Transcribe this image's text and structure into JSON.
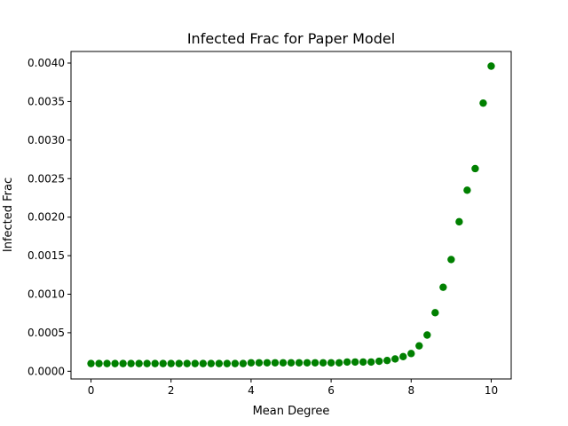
{
  "chart_data": {
    "type": "scatter",
    "title": "Infected Frac for Paper Model",
    "xlabel": "Mean Degree",
    "ylabel": "Infected Frac",
    "xlim": [
      -0.5,
      10.5
    ],
    "ylim": [
      -0.0001,
      0.00415
    ],
    "xticks": [
      0,
      2,
      4,
      6,
      8,
      10
    ],
    "xtick_labels": [
      "0",
      "2",
      "4",
      "6",
      "8",
      "10"
    ],
    "yticks": [
      0,
      0.0005,
      0.001,
      0.0015,
      0.002,
      0.0025,
      0.003,
      0.0035,
      0.004
    ],
    "ytick_labels": [
      "0.0000",
      "0.0005",
      "0.0010",
      "0.0015",
      "0.0020",
      "0.0025",
      "0.0030",
      "0.0035",
      "0.0040"
    ],
    "grid": false,
    "marker_color": "#008000",
    "series": [
      {
        "x": [
          0,
          0.2,
          0.4,
          0.6,
          0.8,
          1.0,
          1.2,
          1.4,
          1.6,
          1.8,
          2.0,
          2.2,
          2.4,
          2.6,
          2.8,
          3.0,
          3.2,
          3.4,
          3.6,
          3.8,
          4.0,
          4.2,
          4.4,
          4.6,
          4.8,
          5.0,
          5.2,
          5.4,
          5.6,
          5.8,
          6.0,
          6.2,
          6.4,
          6.6,
          6.8,
          7.0,
          7.2,
          7.4,
          7.6,
          7.8,
          8.0,
          8.2,
          8.4,
          8.6,
          8.8,
          9.0,
          9.2,
          9.4,
          9.6,
          9.8,
          10.0
        ],
        "y": [
          0.0001,
          0.0001,
          0.0001,
          0.0001,
          0.0001,
          0.0001,
          0.0001,
          0.0001,
          0.0001,
          0.0001,
          0.0001,
          0.0001,
          0.0001,
          0.0001,
          0.0001,
          0.0001,
          0.0001,
          0.0001,
          0.0001,
          0.0001,
          0.00011,
          0.00011,
          0.00011,
          0.00011,
          0.00011,
          0.00011,
          0.00011,
          0.00011,
          0.00011,
          0.00011,
          0.00011,
          0.00011,
          0.00012,
          0.00012,
          0.00012,
          0.00012,
          0.00013,
          0.00014,
          0.00016,
          0.00019,
          0.00023,
          0.00033,
          0.00047,
          0.00076,
          0.00109,
          0.00145,
          0.00194,
          0.00235,
          0.00263,
          0.00348,
          0.00396
        ]
      }
    ]
  }
}
